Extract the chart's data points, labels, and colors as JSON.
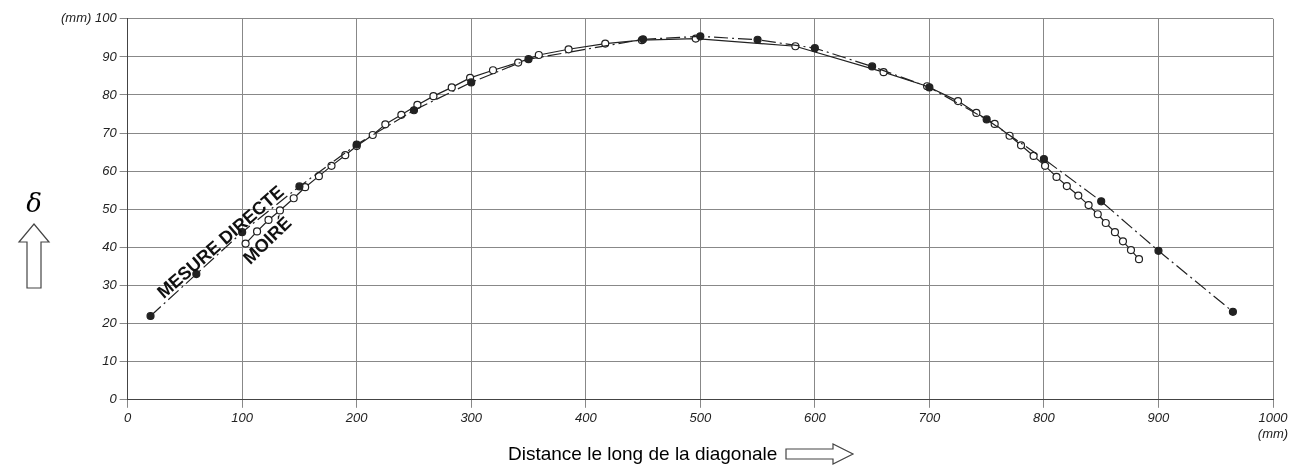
{
  "chart_data": {
    "type": "line",
    "xlabel": "Distance le long de la diagonale",
    "ylabel": "δ",
    "xlim": [
      0,
      1000
    ],
    "xticks": [
      0,
      100,
      200,
      300,
      400,
      500,
      600,
      700,
      800,
      900,
      {
        "value": 1000,
        "label": "1000\n(mm)"
      }
    ],
    "ylim": [
      0,
      100
    ],
    "yticks": [
      0,
      10,
      20,
      30,
      40,
      50,
      60,
      70,
      80,
      90,
      {
        "value": 100,
        "label": "(mm) 100"
      }
    ],
    "grid": true,
    "legend": false,
    "series": [
      {
        "name": "MESURE DIRECTE",
        "color": "#222222",
        "marker": "circle",
        "line_style": "dashed",
        "x": [
          20,
          60,
          100,
          150,
          200,
          250,
          300,
          350,
          450,
          500,
          550,
          600,
          650,
          700,
          750,
          800,
          850,
          900,
          965
        ],
        "values": [
          22,
          33,
          44,
          56,
          67,
          76,
          83.3,
          89.4,
          94.6,
          95.4,
          94.5,
          92.3,
          87.5,
          82,
          73.6,
          63.2,
          52.1,
          39.1,
          23.1
        ]
      },
      {
        "name": "MOIRÉ",
        "color": "#222222",
        "marker": "circle",
        "line_style": "solid",
        "x": [
          103,
          113,
          123,
          133,
          145,
          155,
          167,
          178,
          190,
          200,
          214,
          225,
          239,
          253,
          267,
          283,
          299,
          319,
          341,
          359,
          385,
          417,
          449,
          496,
          583,
          660,
          698,
          725,
          741,
          757,
          770,
          780,
          791,
          801,
          811,
          820,
          830,
          839,
          847,
          854,
          862,
          869,
          876,
          883
        ],
        "values": [
          41,
          44.2,
          47.2,
          49.7,
          52.9,
          55.8,
          58.7,
          61.4,
          64.2,
          66.6,
          69.5,
          72.3,
          74.8,
          77.4,
          79.7,
          82,
          84.5,
          86.5,
          88.5,
          90.5,
          92,
          93.5,
          94.4,
          94.8,
          92.8,
          86,
          82.3,
          78.4,
          75.3,
          72.4,
          69.3,
          66.8,
          64,
          61.4,
          58.5,
          56.1,
          53.6,
          51.1,
          48.7,
          46.4,
          44,
          41.6,
          39.3,
          36.9
        ]
      }
    ]
  }
}
